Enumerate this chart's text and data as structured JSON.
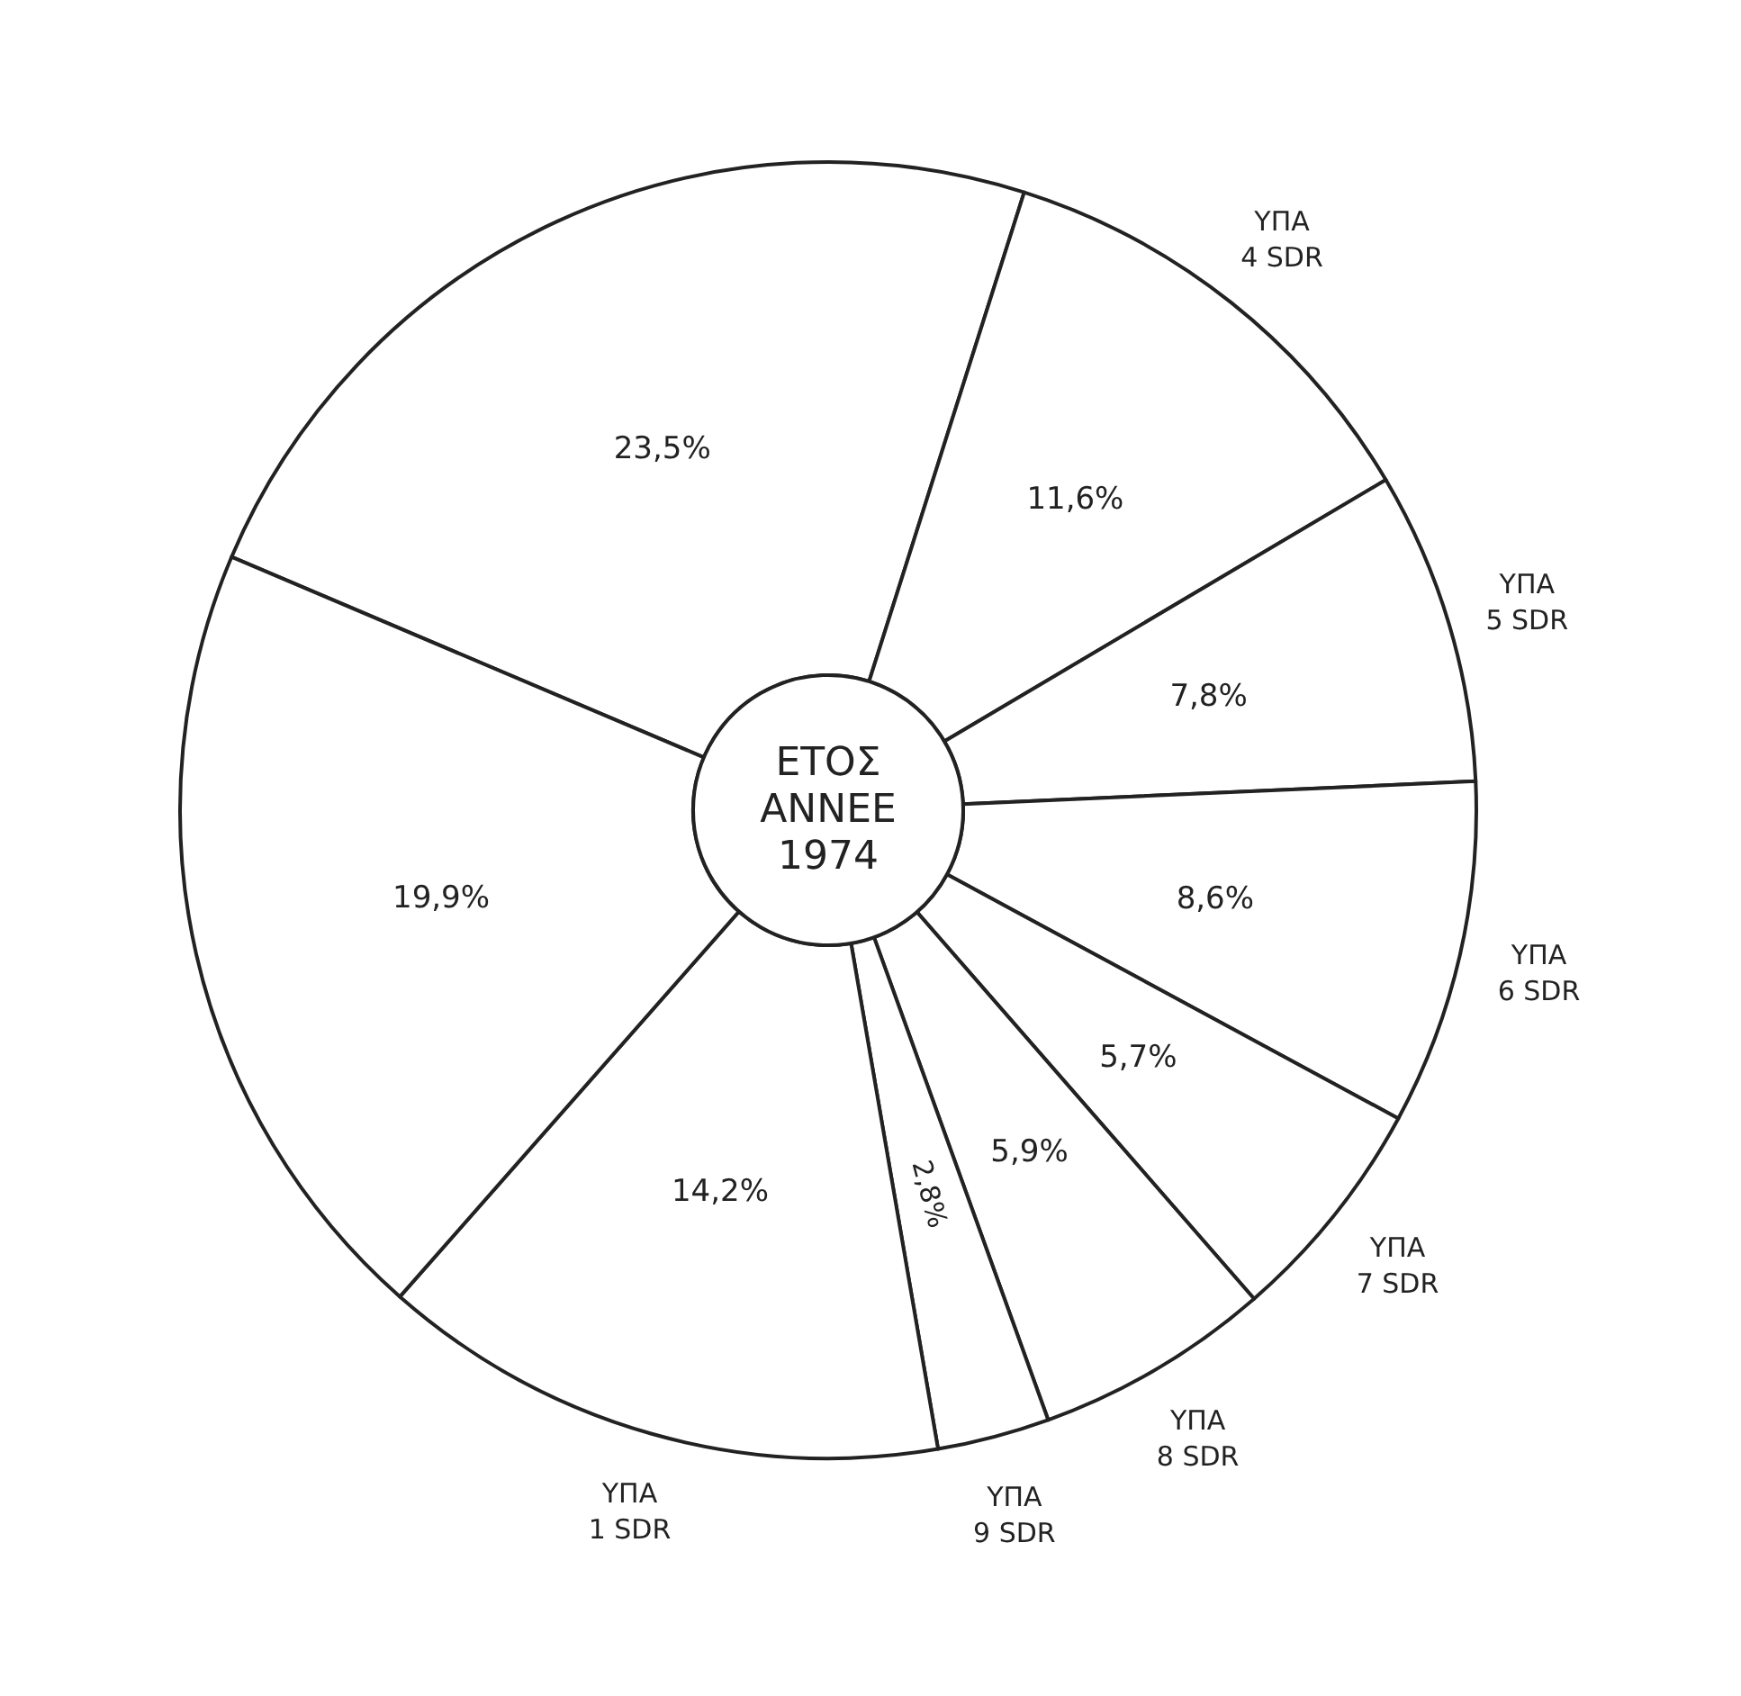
{
  "chart_data": {
    "type": "donut",
    "title": "ΕΤΟΣ ANNEE 1974",
    "categories": [
      null,
      "ΥΠΑ 4 SDR",
      "ΥΠΑ 5 SDR",
      "ΥΠΑ 6 SDR",
      "ΥΠΑ 7 SDR",
      "ΥΠΑ 8 SDR",
      "ΥΠΑ 9 SDR",
      "ΥΠΑ 1 SDR",
      null
    ],
    "values": [
      23.5,
      11.6,
      7.8,
      8.6,
      5.7,
      5.9,
      2.8,
      14.2,
      19.9
    ],
    "value_labels": [
      "23,5%",
      "11,6%",
      "7,8%",
      "8,6%",
      "5,7%",
      "5,9%",
      "2,8%",
      "14,2%",
      "19,9%"
    ],
    "colors": [
      "#ffffff",
      "#ffffff",
      "#ffffff",
      "#ffffff",
      "#ffffff",
      "#ffffff",
      "#ffffff",
      "#ffffff",
      "#ffffff"
    ],
    "legend": false
  }
}
